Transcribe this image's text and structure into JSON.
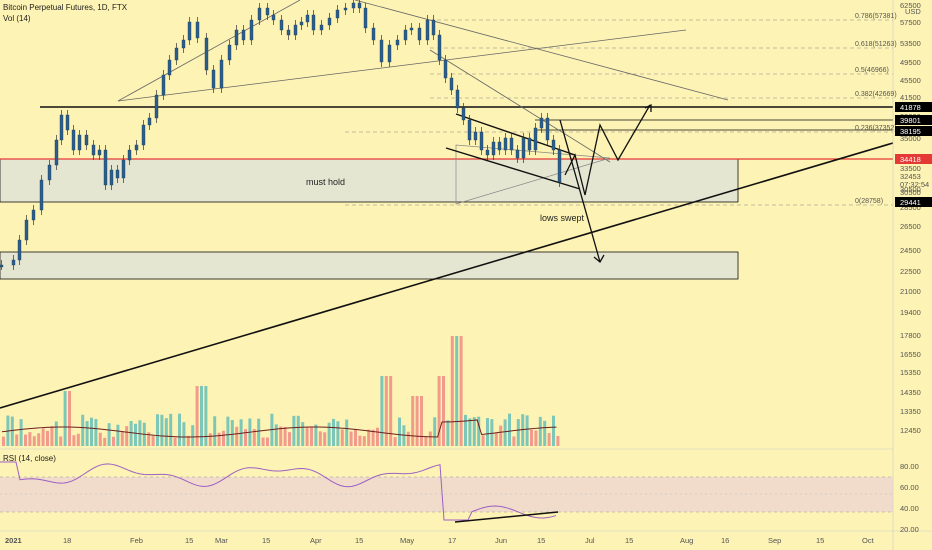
{
  "header": {
    "title": "Bitcoin Perpetual Futures, 1D, FTX",
    "vol_label": "Vol (14)",
    "rsi_label": "RSI (14, close)"
  },
  "colors": {
    "background": "#fdf3b4",
    "up": "#26a69a",
    "down": "#ef5350",
    "candle_body": "#2b5f8a",
    "ma": "#6b1f1f",
    "rsi": "#9c5fc4",
    "box": "#e5e6d2",
    "support_red": "#e53935",
    "tag_black": "#000000",
    "tag_red": "#e53935"
  },
  "chart_data": [
    {
      "type": "candlestick",
      "title": "Bitcoin Perpetual Futures, 1D, FTX",
      "y_unit": "USD",
      "y_ticks": [
        "62500",
        "57500",
        "53500",
        "49500",
        "45500",
        "41500",
        "38000",
        "35000",
        "30500",
        "28500",
        "26500",
        "24500",
        "22500",
        "21000",
        "19400",
        "17800",
        "16550",
        "15350",
        "14350",
        "13350",
        "12450"
      ],
      "x_ticks": [
        "2021",
        "18",
        "Feb",
        "15",
        "Mar",
        "15",
        "Apr",
        "15",
        "May",
        "17",
        "Jun",
        "15",
        "Jul",
        "15",
        "Aug",
        "16",
        "Sep",
        "15",
        "Oct"
      ],
      "fib_levels": [
        {
          "ratio": "0.786",
          "price": "57381",
          "label": "0.786(57381)"
        },
        {
          "ratio": "0.618",
          "price": "51263",
          "label": "0.618(51263)"
        },
        {
          "ratio": "0.5",
          "price": "46966",
          "label": "0.5(46966)"
        },
        {
          "ratio": "0.382",
          "price": "42669",
          "label": "0.382(42669)"
        },
        {
          "ratio": "0.236",
          "price": "37352",
          "label": "0.236(37352)"
        },
        {
          "ratio": "0",
          "price": "28758",
          "label": "0(28758)"
        }
      ],
      "price_tags": [
        {
          "value": "41878",
          "style": "black"
        },
        {
          "value": "39801",
          "style": "black"
        },
        {
          "value": "38195",
          "style": "black"
        },
        {
          "value": "34418",
          "style": "red"
        },
        {
          "value": "33500",
          "style": "plain"
        },
        {
          "value": "32453",
          "style": "plain"
        },
        {
          "value": "07:32:54",
          "style": "plain"
        },
        {
          "value": "30500",
          "style": "plain"
        },
        {
          "value": "29441",
          "style": "black"
        }
      ],
      "annotations": [
        "must hold",
        "lows swept"
      ],
      "indicator_volume": {
        "label": "Vol (14)"
      },
      "indicator_rsi": {
        "label": "RSI (14, close)",
        "ticks": [
          "80.00",
          "60.00",
          "40.00",
          "20.00"
        ],
        "band": [
          30,
          70
        ]
      }
    }
  ]
}
